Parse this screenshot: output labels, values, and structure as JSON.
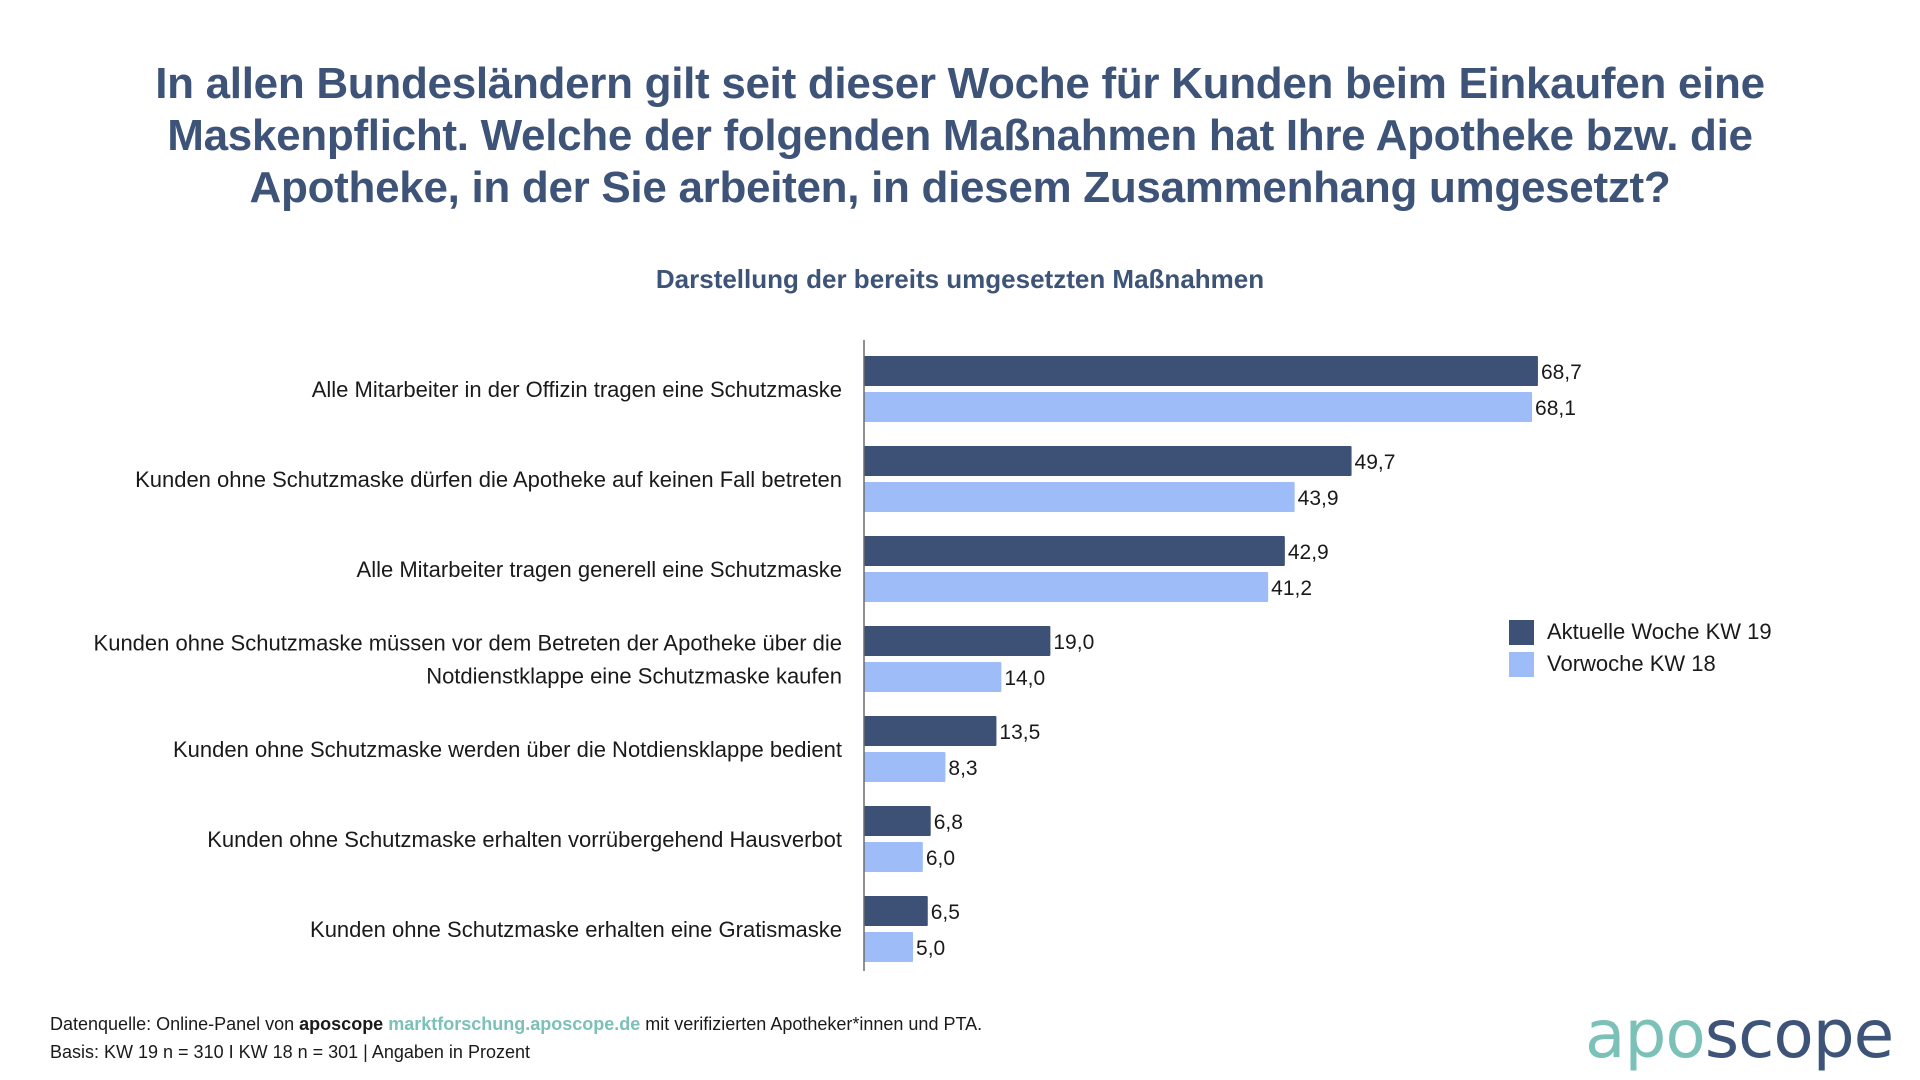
{
  "title": "In allen Bundesländern gilt seit dieser Woche für Kunden beim Einkaufen eine Maskenpflicht. Welche der folgenden Maßnahmen hat Ihre Apotheke bzw. die Apotheke, in der Sie arbeiten, in diesem Zusammenhang umgesetzt?",
  "subtitle": "Darstellung der bereits umgesetzten Maßnahmen",
  "colors": {
    "current": "#3d5177",
    "previous": "#9ebcf7",
    "title": "#3e5378",
    "brand_teal": "#7cc1b8"
  },
  "chart_data": {
    "type": "bar",
    "orientation": "horizontal",
    "title": "Darstellung der bereits umgesetzten Maßnahmen",
    "xlabel": "",
    "ylabel": "",
    "xlim": [
      0,
      70
    ],
    "grid": false,
    "legend_position": "right",
    "categories": [
      "Alle Mitarbeiter in der Offizin tragen eine Schutzmaske",
      "Kunden ohne Schutzmaske dürfen die Apotheke auf keinen Fall betreten",
      "Alle Mitarbeiter tragen generell eine Schutzmaske",
      "Kunden ohne Schutzmaske müssen vor dem Betreten der Apotheke über die|Notdienstklappe eine Schutzmaske kaufen",
      "Kunden ohne Schutzmaske werden über die Notdiensklappe bedient",
      "Kunden ohne Schutzmaske erhalten vorrübergehend Hausverbot",
      "Kunden ohne Schutzmaske erhalten eine Gratismaske"
    ],
    "series": [
      {
        "name": "Aktuelle Woche KW 19",
        "color": "#3d5177",
        "values": [
          68.7,
          49.7,
          42.9,
          19.0,
          13.5,
          6.8,
          6.5
        ],
        "labels": [
          "68,7",
          "49,7",
          "42,9",
          "19,0",
          "13,5",
          "6,8",
          "6,5"
        ]
      },
      {
        "name": "Vorwoche KW 18",
        "color": "#9ebcf7",
        "values": [
          68.1,
          43.9,
          41.2,
          14.0,
          8.3,
          6.0,
          5.0
        ],
        "labels": [
          "68,1",
          "43,9",
          "41,2",
          "14,0",
          "8,3",
          "6,0",
          "5,0"
        ]
      }
    ]
  },
  "legend": [
    {
      "label": "Aktuelle Woche KW 19",
      "color": "#3d5177"
    },
    {
      "label": "Vorwoche KW 18",
      "color": "#9ebcf7"
    }
  ],
  "footer": {
    "line1_prefix": "Datenquelle: Online-Panel von ",
    "line1_brand": "aposcope",
    "line1_link": "marktforschung.aposcope.de",
    "line1_suffix": " mit verifizierten Apotheker*innen und PTA.",
    "line2": "Basis: KW 19 n = 310 I KW 18 n = 301 | Angaben in Prozent"
  },
  "logo": {
    "part1": "apo",
    "part2": "scope"
  }
}
